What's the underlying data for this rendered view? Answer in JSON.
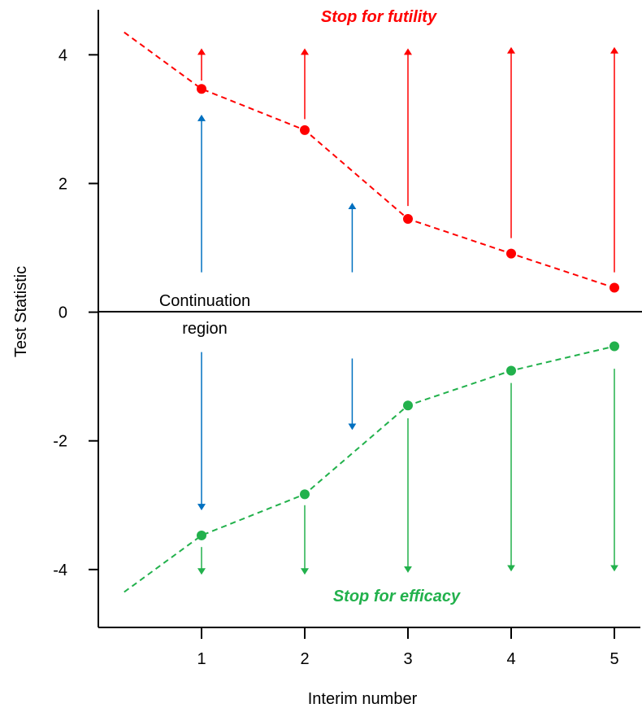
{
  "chart_data": {
    "type": "line",
    "title": "",
    "xlabel": "Interim number",
    "ylabel": "Test Statistic",
    "x_ticks": [
      1,
      2,
      3,
      4,
      5
    ],
    "y_ticks": [
      4,
      2,
      0,
      -2,
      -4
    ],
    "xlim": [
      0,
      5.3
    ],
    "ylim": [
      -4.9,
      4.7
    ],
    "grid": false,
    "legend": "none",
    "series": [
      {
        "color": "#ff0000",
        "points": [
          {
            "x": 1,
            "y": 3.47
          },
          {
            "x": 2,
            "y": 2.83
          },
          {
            "x": 3,
            "y": 1.45
          },
          {
            "x": 4,
            "y": 0.91
          },
          {
            "x": 5,
            "y": 0.38
          }
        ],
        "extension": {
          "x": 0.25,
          "y": 4.35
        }
      },
      {
        "color": "#22b14c",
        "points": [
          {
            "x": 1,
            "y": -3.47
          },
          {
            "x": 2,
            "y": -2.83
          },
          {
            "x": 3,
            "y": -1.45
          },
          {
            "x": 4,
            "y": -0.91
          },
          {
            "x": 5,
            "y": -0.53
          }
        ],
        "extension": {
          "x": 0.25,
          "y": -4.35
        }
      }
    ],
    "arrows": [
      {
        "x": 1,
        "from": 3.6,
        "to": 4.05,
        "color": "#ff0000"
      },
      {
        "x": 2,
        "from": 3.0,
        "to": 4.05,
        "color": "#ff0000"
      },
      {
        "x": 3,
        "from": 1.65,
        "to": 4.05,
        "color": "#ff0000"
      },
      {
        "x": 4,
        "from": 1.15,
        "to": 4.07,
        "color": "#ff0000"
      },
      {
        "x": 5,
        "from": 0.62,
        "to": 4.07,
        "color": "#ff0000"
      },
      {
        "x": 1,
        "from": 0.62,
        "to": 3.02,
        "color": "#0070c0"
      },
      {
        "x": 2.46,
        "from": 0.62,
        "to": 1.65,
        "color": "#0070c0"
      },
      {
        "x": 1,
        "from": -0.62,
        "to": -3.03,
        "color": "#0070c0"
      },
      {
        "x": 2.46,
        "from": -0.72,
        "to": -1.78,
        "color": "#0070c0"
      },
      {
        "x": 1,
        "from": -3.65,
        "to": -4.03,
        "color": "#22b14c"
      },
      {
        "x": 2,
        "from": -3.0,
        "to": -4.03,
        "color": "#22b14c"
      },
      {
        "x": 3,
        "from": -1.65,
        "to": -4.0,
        "color": "#22b14c"
      },
      {
        "x": 4,
        "from": -1.1,
        "to": -3.98,
        "color": "#22b14c"
      },
      {
        "x": 5,
        "from": -0.88,
        "to": -3.98,
        "color": "#22b14c"
      }
    ],
    "annotations": {
      "futility": "Stop for futility",
      "efficacy": "Stop for efficacy",
      "continuation_line1": "Continuation",
      "continuation_line2": "region"
    }
  }
}
